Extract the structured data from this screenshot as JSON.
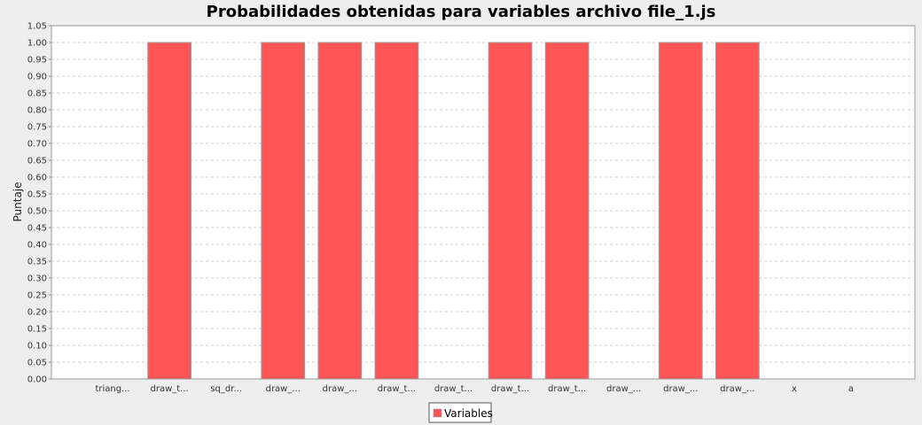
{
  "chart_data": {
    "type": "bar",
    "title": "Probabilidades obtenidas para variables archivo file_1.js",
    "xlabel": "",
    "ylabel": "Puntaje",
    "ylim": [
      0,
      1.05
    ],
    "yticks": [
      "0.00",
      "0.05",
      "0.10",
      "0.15",
      "0.20",
      "0.25",
      "0.30",
      "0.35",
      "0.40",
      "0.45",
      "0.50",
      "0.55",
      "0.60",
      "0.65",
      "0.70",
      "0.75",
      "0.80",
      "0.85",
      "0.90",
      "0.95",
      "1.00",
      "1.05"
    ],
    "grid": true,
    "legend_position": "bottom-center",
    "categories": [
      "triang...",
      "draw_t...",
      "sq_dr...",
      "draw_...",
      "draw_...",
      "draw_t...",
      "draw_t...",
      "draw_t...",
      "draw_t...",
      "draw_...",
      "draw_...",
      "draw_...",
      "x",
      "a"
    ],
    "series": [
      {
        "name": "Variables",
        "color": "#ff5555",
        "values": [
          0,
          1,
          0,
          1,
          1,
          1,
          0,
          1,
          1,
          0,
          1,
          1,
          0,
          0
        ]
      }
    ]
  }
}
